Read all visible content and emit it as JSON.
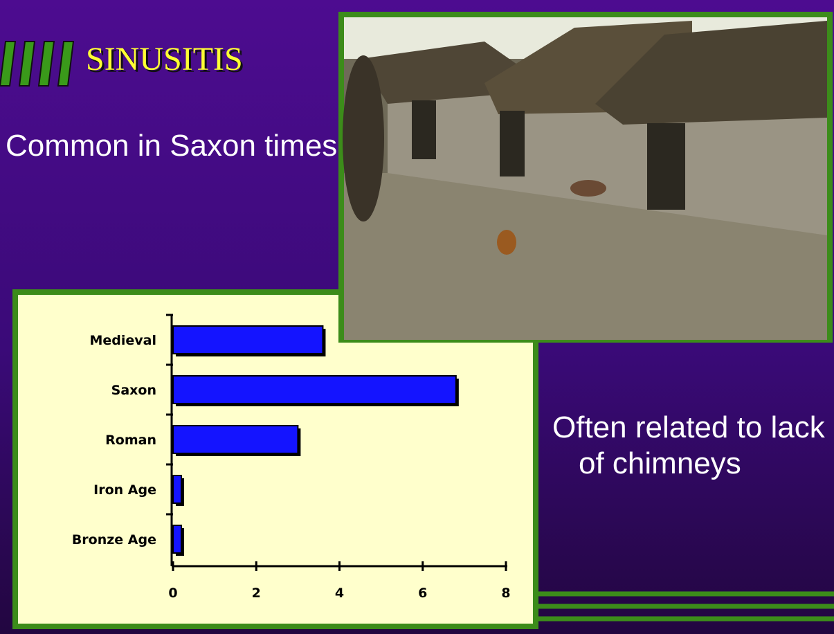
{
  "title": "SINUSITIS",
  "bullets": [
    "Common in Saxon times",
    "Often related to lack of chimneys"
  ],
  "chart_data": {
    "type": "hbar",
    "categories": [
      "Medieval",
      "Saxon",
      "Roman",
      "Iron Age",
      "Bronze Age"
    ],
    "values": [
      3.6,
      6.8,
      3.0,
      0.2,
      0.2
    ],
    "color": "#1414ff",
    "xlim": [
      0,
      8
    ],
    "xticks": [
      0,
      2,
      4,
      6,
      8
    ]
  }
}
